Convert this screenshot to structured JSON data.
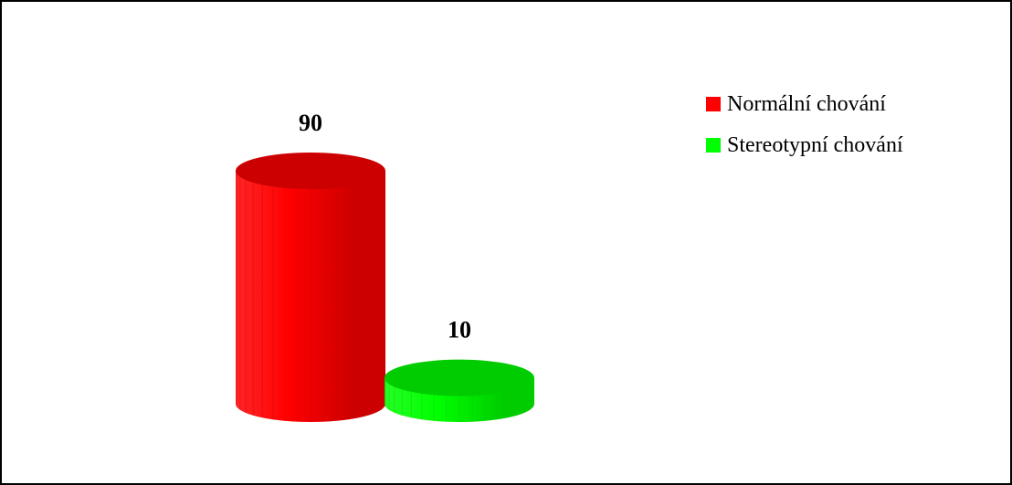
{
  "chart_data": {
    "type": "bar",
    "style": "3d-cylinder",
    "categories": [
      "Normální chování",
      "Stereotypní chování"
    ],
    "values": [
      90,
      10
    ],
    "colors": [
      "#ff0000",
      "#00ff00"
    ],
    "top_colors": [
      "#cc0000",
      "#00cc00"
    ],
    "data_labels": [
      "90",
      "10"
    ],
    "ylim": [
      0,
      90
    ],
    "grid": false,
    "legend": {
      "position": "top-right",
      "entries": [
        "Normální chování",
        "Stereotypní chování"
      ]
    },
    "title": "",
    "xlabel": "",
    "ylabel": ""
  }
}
